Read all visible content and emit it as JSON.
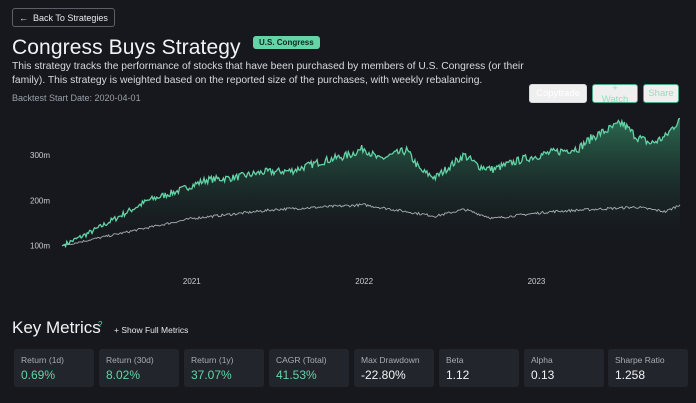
{
  "header": {
    "back_label": "Back To Strategies",
    "title": "Congress Buys Strategy",
    "badge": "U.S. Congress",
    "description": "This strategy tracks the performance of stocks that have been purchased by members of U.S. Congress (or their family). This strategy is weighted based on the reported size of the purchases, with weekly rebalancing.",
    "start_date": "Backtest Start Date: 2020-04-01"
  },
  "actions": {
    "copytrade": "Copytrade",
    "watch": "+ Watch",
    "share": "Share"
  },
  "colors": {
    "strategy_line": "#64d3a6",
    "benchmark_line": "#a8adb5",
    "badge": "#64d3a6",
    "background": "#16181d"
  },
  "chart_data": {
    "type": "area",
    "y_ticks": [
      "100m",
      "200m",
      "300m"
    ],
    "x_ticks": [
      "2021",
      "2022",
      "2023"
    ],
    "ylim": [
      95,
      390
    ],
    "xlim": [
      "2020-04-01",
      "2023-11-01"
    ],
    "grid": false,
    "series": [
      {
        "role": "strategy",
        "points": [
          [
            "2020-04-01",
            100
          ],
          [
            "2020-06-01",
            130
          ],
          [
            "2020-08-01",
            165
          ],
          [
            "2020-10-01",
            200
          ],
          [
            "2020-12-01",
            220
          ],
          [
            "2021-02-01",
            245
          ],
          [
            "2021-04-01",
            250
          ],
          [
            "2021-06-01",
            262
          ],
          [
            "2021-08-01",
            265
          ],
          [
            "2021-10-01",
            285
          ],
          [
            "2021-12-01",
            300
          ],
          [
            "2022-01-01",
            315
          ],
          [
            "2022-02-01",
            290
          ],
          [
            "2022-04-01",
            310
          ],
          [
            "2022-05-01",
            265
          ],
          [
            "2022-06-01",
            250
          ],
          [
            "2022-08-01",
            300
          ],
          [
            "2022-09-01",
            275
          ],
          [
            "2022-10-01",
            268
          ],
          [
            "2022-12-01",
            290
          ],
          [
            "2023-02-01",
            305
          ],
          [
            "2023-04-01",
            315
          ],
          [
            "2023-05-01",
            340
          ],
          [
            "2023-06-01",
            355
          ],
          [
            "2023-07-01",
            370
          ],
          [
            "2023-08-01",
            340
          ],
          [
            "2023-09-01",
            325
          ],
          [
            "2023-10-01",
            340
          ],
          [
            "2023-11-01",
            380
          ]
        ]
      },
      {
        "role": "benchmark",
        "points": [
          [
            "2020-04-01",
            100
          ],
          [
            "2020-07-01",
            120
          ],
          [
            "2020-10-01",
            140
          ],
          [
            "2021-01-01",
            160
          ],
          [
            "2021-04-01",
            170
          ],
          [
            "2021-07-01",
            180
          ],
          [
            "2021-10-01",
            185
          ],
          [
            "2022-01-01",
            190
          ],
          [
            "2022-03-01",
            180
          ],
          [
            "2022-06-01",
            165
          ],
          [
            "2022-08-01",
            180
          ],
          [
            "2022-10-01",
            160
          ],
          [
            "2022-12-01",
            168
          ],
          [
            "2023-02-01",
            175
          ],
          [
            "2023-05-01",
            180
          ],
          [
            "2023-08-01",
            185
          ],
          [
            "2023-10-01",
            175
          ],
          [
            "2023-11-01",
            190
          ]
        ]
      }
    ]
  },
  "metrics": {
    "title": "Key Metrics",
    "info_icon": "?",
    "show_full": "+ Show Full Metrics",
    "items": [
      {
        "label": "Return (1d)",
        "value": "0.69%",
        "tone": "green"
      },
      {
        "label": "Return (30d)",
        "value": "8.02%",
        "tone": "green"
      },
      {
        "label": "Return (1y)",
        "value": "37.07%",
        "tone": "green"
      },
      {
        "label": "CAGR (Total)",
        "value": "41.53%",
        "tone": "green"
      },
      {
        "label": "Max Drawdown",
        "value": "-22.80%",
        "tone": "white"
      },
      {
        "label": "Beta",
        "value": "1.12",
        "tone": "white"
      },
      {
        "label": "Alpha",
        "value": "0.13",
        "tone": "white"
      },
      {
        "label": "Sharpe Ratio",
        "value": "1.258",
        "tone": "white"
      }
    ]
  }
}
